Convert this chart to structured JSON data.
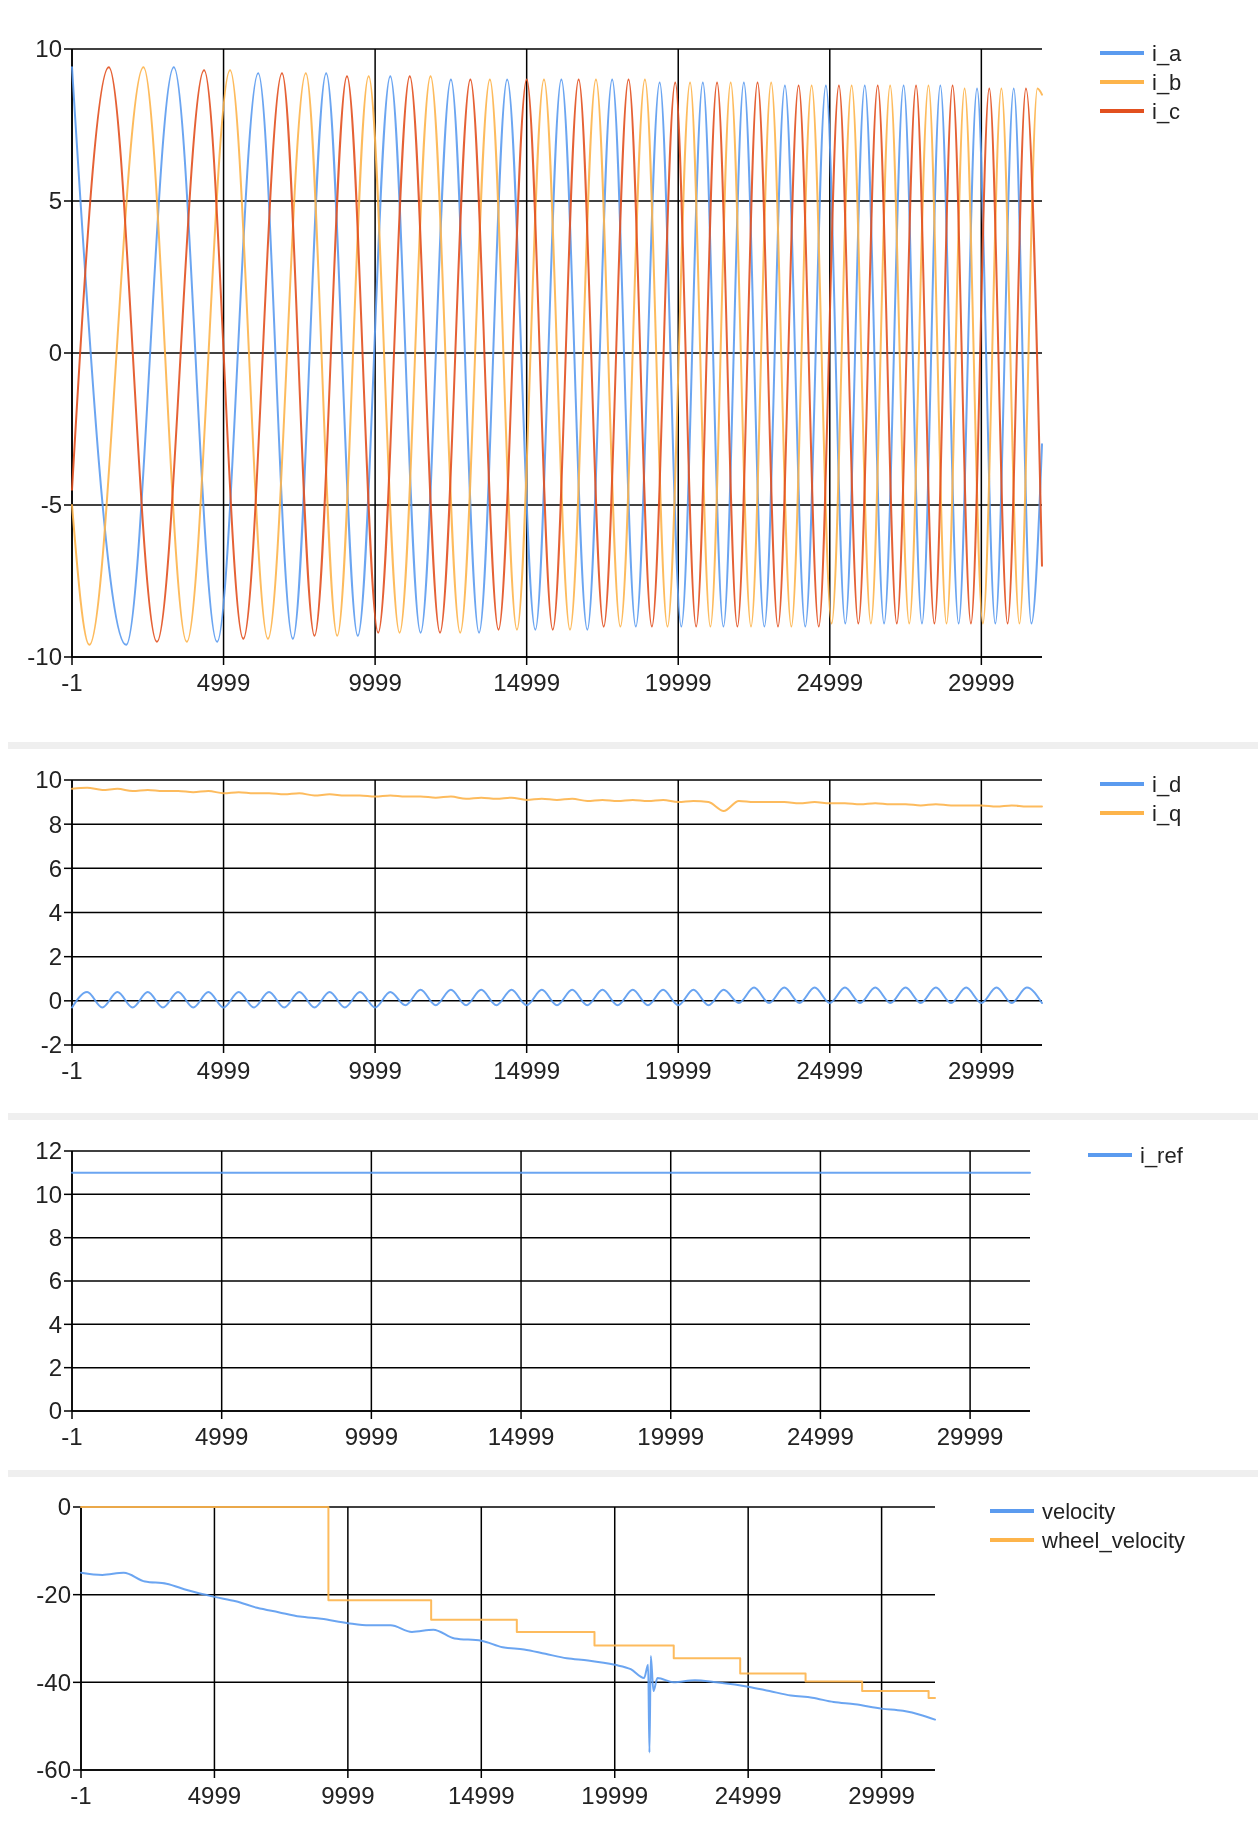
{
  "chart_data": [
    {
      "type": "line",
      "xlim": [
        -1,
        32000
      ],
      "xticks": [
        -1,
        4999,
        9999,
        14999,
        19999,
        24999,
        29999
      ],
      "ylim": [
        -10,
        10
      ],
      "yticks": [
        -10,
        -5,
        0,
        5,
        10
      ],
      "grid": true,
      "legend": "top right",
      "series": [
        {
          "name": "i_a",
          "color": "#5b9bef",
          "x": [
            -1,
            1785,
            3357,
            4785,
            6142,
            7285,
            8385,
            9428,
            10500,
            11500,
            12500,
            13428,
            14357,
            15285,
            16143,
            17000,
            17820,
            18600,
            19387,
            20100,
            20811,
            21490,
            22164,
            22840,
            23518,
            24190,
            24871,
            25510,
            26153,
            26790,
            27435,
            28040,
            28646,
            29250,
            29857,
            30460,
            31068,
            31650,
            32000
          ],
          "values": [
            9.4,
            -9.6,
            9.4,
            -9.5,
            9.2,
            -9.4,
            9.2,
            -9.3,
            9.1,
            -9.2,
            9.0,
            -9.2,
            9.0,
            -9.1,
            9.0,
            -9.1,
            9.0,
            -9.0,
            8.9,
            -9.0,
            8.9,
            -9.0,
            8.9,
            -9.0,
            8.8,
            -9.0,
            8.8,
            -8.9,
            8.8,
            -8.9,
            8.8,
            -8.9,
            8.8,
            -8.9,
            8.7,
            -8.9,
            8.7,
            -8.9,
            -3
          ]
        },
        {
          "name": "i_b",
          "color": "#fdb44b",
          "x": [
            -1,
            570,
            2356,
            3785,
            5214,
            6464,
            7714,
            8750,
            9785,
            10806,
            11828,
            12806,
            13785,
            14678,
            15570,
            16428,
            17285,
            18090,
            18900,
            19645,
            20390,
            21060,
            21730,
            22400,
            23065,
            23730,
            24400,
            25060,
            25720,
            26355,
            26990,
            27620,
            28255,
            28850,
            29446,
            30050,
            30660,
            31255,
            31850,
            32000
          ],
          "values": [
            -5,
            -9.6,
            9.4,
            -9.5,
            9.3,
            -9.4,
            9.2,
            -9.3,
            9.1,
            -9.2,
            9.1,
            -9.2,
            9.0,
            -9.1,
            9.0,
            -9.1,
            9.0,
            -9.0,
            9.0,
            -9.0,
            8.9,
            -9.0,
            8.9,
            -9.0,
            8.9,
            -9.0,
            8.8,
            -8.9,
            8.8,
            -8.9,
            8.8,
            -8.9,
            8.8,
            -8.9,
            8.7,
            -8.9,
            8.7,
            -8.9,
            8.7,
            8.5
          ]
        },
        {
          "name": "i_c",
          "color": "#e2501f",
          "x": [
            -1,
            1213,
            2800,
            4357,
            5650,
            6928,
            8000,
            9071,
            10100,
            11142,
            12140,
            13142,
            14070,
            15000,
            15860,
            16714,
            17540,
            18360,
            19130,
            19900,
            20590,
            21280,
            21950,
            22615,
            23290,
            23970,
            24635,
            25300,
            25940,
            26580,
            27210,
            27845,
            28450,
            29050,
            29655,
            30260,
            30865,
            31470,
            32000
          ],
          "values": [
            -4.5,
            9.4,
            -9.5,
            9.3,
            -9.4,
            9.2,
            -9.3,
            9.1,
            -9.2,
            9.1,
            -9.2,
            9.0,
            -9.1,
            9.0,
            -9.1,
            9.0,
            -9.0,
            9.0,
            -9.0,
            8.9,
            -9.0,
            8.9,
            -9.0,
            8.9,
            -9.0,
            8.8,
            -9.0,
            8.8,
            -8.9,
            8.8,
            -8.9,
            8.8,
            -8.9,
            8.8,
            -8.9,
            8.7,
            -8.9,
            8.7,
            -7
          ]
        }
      ]
    },
    {
      "type": "line",
      "xlim": [
        -1,
        32000
      ],
      "xticks": [
        -1,
        4999,
        9999,
        14999,
        19999,
        24999,
        29999
      ],
      "ylim": [
        -2,
        10
      ],
      "yticks": [
        -2,
        0,
        2,
        4,
        6,
        8,
        10
      ],
      "grid": true,
      "legend": "top right",
      "x": [
        -1,
        499,
        999,
        1499,
        1999,
        2499,
        2999,
        3499,
        3999,
        4499,
        4999,
        5499,
        5999,
        6499,
        6999,
        7499,
        7999,
        8499,
        8999,
        9499,
        9999,
        10499,
        10999,
        11499,
        11999,
        12499,
        12999,
        13499,
        13999,
        14499,
        14999,
        15499,
        15999,
        16499,
        16999,
        17499,
        17999,
        18499,
        18999,
        19499,
        19999,
        20499,
        20999,
        21499,
        21999,
        22499,
        22999,
        23499,
        23999,
        24499,
        24999,
        25499,
        25999,
        26499,
        26999,
        27499,
        27999,
        28499,
        28999,
        29499,
        29999,
        30499,
        30999,
        31499,
        31999
      ],
      "series": [
        {
          "name": "i_d",
          "color": "#5b9bef",
          "values": [
            -0.3,
            0.4,
            -0.3,
            0.4,
            -0.3,
            0.4,
            -0.3,
            0.4,
            -0.3,
            0.4,
            -0.3,
            0.4,
            -0.3,
            0.4,
            -0.3,
            0.4,
            -0.3,
            0.4,
            -0.3,
            0.4,
            -0.3,
            0.4,
            -0.2,
            0.5,
            -0.2,
            0.5,
            -0.2,
            0.5,
            -0.2,
            0.5,
            -0.2,
            0.5,
            -0.2,
            0.5,
            -0.2,
            0.5,
            -0.2,
            0.5,
            -0.2,
            0.5,
            -0.2,
            0.5,
            -0.2,
            0.5,
            -0.1,
            0.6,
            -0.1,
            0.6,
            -0.1,
            0.6,
            -0.1,
            0.6,
            -0.1,
            0.6,
            -0.1,
            0.6,
            -0.1,
            0.6,
            -0.1,
            0.6,
            -0.1,
            0.6,
            -0.1,
            0.6,
            -0.1
          ]
        },
        {
          "name": "i_q",
          "color": "#fdb44b",
          "values": [
            9.6,
            9.65,
            9.55,
            9.6,
            9.5,
            9.55,
            9.5,
            9.5,
            9.45,
            9.5,
            9.4,
            9.45,
            9.4,
            9.4,
            9.35,
            9.4,
            9.3,
            9.35,
            9.3,
            9.3,
            9.25,
            9.3,
            9.25,
            9.25,
            9.2,
            9.25,
            9.15,
            9.2,
            9.15,
            9.2,
            9.1,
            9.15,
            9.1,
            9.15,
            9.05,
            9.1,
            9.05,
            9.1,
            9.05,
            9.1,
            9.0,
            9.05,
            9.0,
            8.6,
            9.05,
            9.0,
            9.0,
            9.0,
            8.95,
            9.0,
            8.95,
            8.95,
            8.9,
            8.95,
            8.9,
            8.9,
            8.85,
            8.9,
            8.85,
            8.85,
            8.85,
            8.8,
            8.85,
            8.8,
            8.8
          ]
        }
      ]
    },
    {
      "type": "line",
      "xlim": [
        -1,
        32000
      ],
      "xticks": [
        -1,
        4999,
        9999,
        14999,
        19999,
        24999,
        29999
      ],
      "ylim": [
        0,
        12
      ],
      "yticks": [
        0,
        2,
        4,
        6,
        8,
        10,
        12
      ],
      "grid": true,
      "legend": "top right",
      "series": [
        {
          "name": "i_ref",
          "color": "#5b9bef",
          "x": [
            -1,
            32000
          ],
          "values": [
            11,
            11
          ]
        }
      ]
    },
    {
      "type": "line",
      "xlim": [
        -1,
        32000
      ],
      "xticks": [
        -1,
        4999,
        9999,
        14999,
        19999,
        24999,
        29999
      ],
      "ylim": [
        -60,
        0
      ],
      "yticks": [
        -60,
        -40,
        -20,
        0
      ],
      "grid": true,
      "legend": "top right",
      "series": [
        {
          "name": "velocity",
          "color": "#5b9bef",
          "x": [
            -1,
            800,
            1600,
            2400,
            3200,
            4000,
            4999,
            5800,
            6600,
            7400,
            8200,
            9000,
            9999,
            10800,
            11600,
            12400,
            13200,
            14000,
            14999,
            15800,
            16600,
            17400,
            18200,
            19000,
            19999,
            20600,
            21100,
            21250,
            21300,
            21350,
            21450,
            21600,
            22200,
            23000,
            23800,
            24999,
            25800,
            26600,
            27400,
            28200,
            29000,
            29999,
            30800,
            31500,
            32000
          ],
          "values": [
            -15,
            -15.5,
            -15,
            -17,
            -17.5,
            -19,
            -20.5,
            -21.5,
            -23,
            -24,
            -25,
            -25.5,
            -26.5,
            -27,
            -27,
            -28.5,
            -28,
            -30,
            -30.5,
            -32,
            -32.5,
            -33.5,
            -34.5,
            -35,
            -36,
            -37,
            -39,
            -36,
            -56,
            -34,
            -42,
            -39,
            -40,
            -39.5,
            -40,
            -41,
            -42,
            -43,
            -43.5,
            -44.5,
            -45,
            -46,
            -46.5,
            -47.5,
            -48.5
          ]
        },
        {
          "name": "wheel_velocity",
          "type": "step",
          "color": "#fdb44b",
          "x": [
            -1,
            9270,
            13120,
            16330,
            19240,
            22210,
            24700,
            27150,
            29270,
            31760,
            32000
          ],
          "values": [
            0,
            -21.3,
            -25.7,
            -28.5,
            -31.6,
            -34.5,
            -38,
            -39.8,
            -42,
            -43.6,
            -43.6
          ]
        }
      ]
    }
  ]
}
